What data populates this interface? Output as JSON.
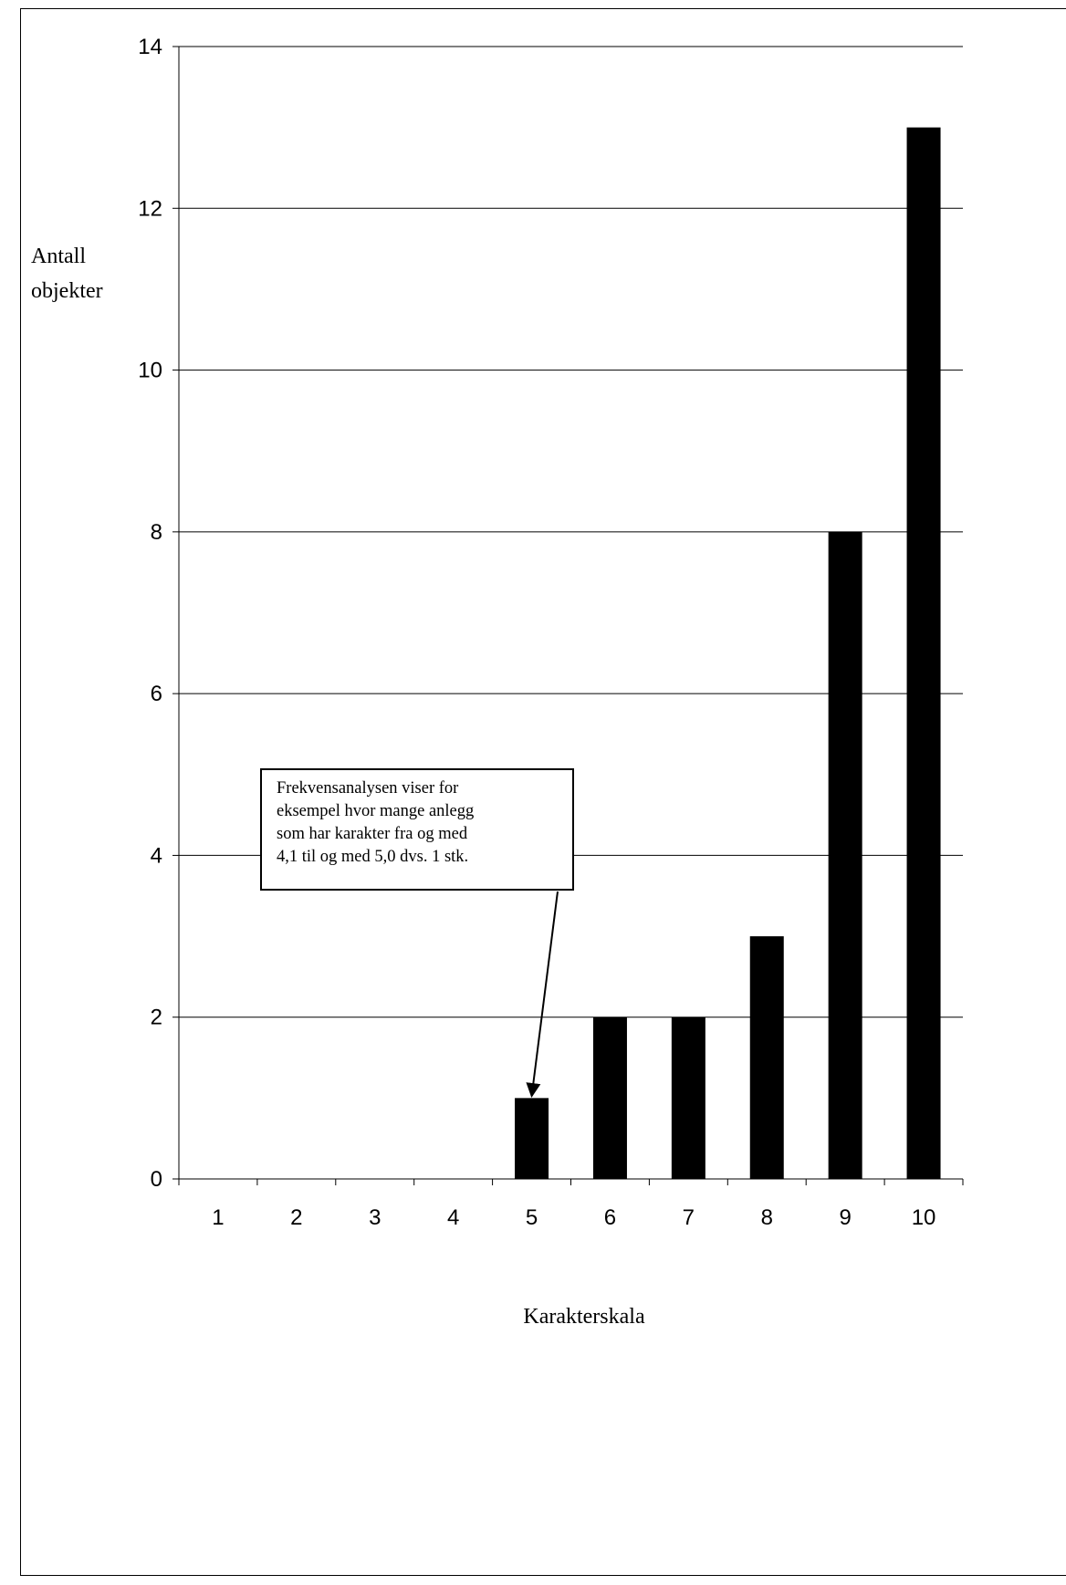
{
  "chart_data": {
    "type": "bar",
    "title": "",
    "xlabel": "Karakterskala",
    "ylabel_lines": [
      "Antall",
      "objekter"
    ],
    "categories": [
      "1",
      "2",
      "3",
      "4",
      "5",
      "6",
      "7",
      "8",
      "9",
      "10"
    ],
    "values": [
      0,
      0,
      0,
      0,
      1,
      2,
      2,
      3,
      8,
      13
    ],
    "ylim": [
      0,
      14
    ],
    "yticks": [
      "0",
      "2",
      "4",
      "6",
      "8",
      "10",
      "12",
      "14"
    ],
    "grid": true,
    "bar_color": "#000000",
    "annotation": {
      "lines": [
        "Frekvensanalysen viser for",
        "eksempel hvor mange anlegg",
        "som har karakter fra og med",
        "4,1 til og med 5,0 dvs. 1 stk."
      ],
      "target_category": "5"
    }
  }
}
